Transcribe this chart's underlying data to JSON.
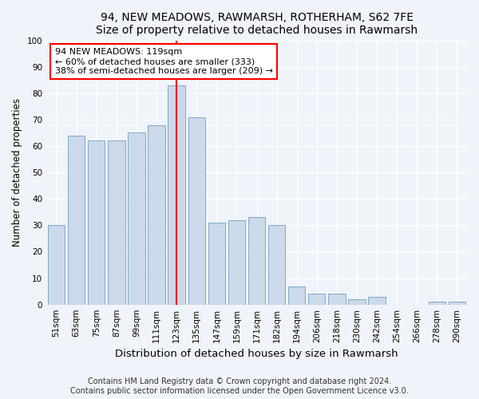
{
  "title": "94, NEW MEADOWS, RAWMARSH, ROTHERHAM, S62 7FE",
  "subtitle": "Size of property relative to detached houses in Rawmarsh",
  "xlabel": "Distribution of detached houses by size in Rawmarsh",
  "ylabel": "Number of detached properties",
  "categories": [
    "51sqm",
    "63sqm",
    "75sqm",
    "87sqm",
    "99sqm",
    "111sqm",
    "123sqm",
    "135sqm",
    "147sqm",
    "159sqm",
    "171sqm",
    "182sqm",
    "194sqm",
    "206sqm",
    "218sqm",
    "230sqm",
    "242sqm",
    "254sqm",
    "266sqm",
    "278sqm",
    "290sqm"
  ],
  "values": [
    30,
    64,
    62,
    62,
    65,
    68,
    83,
    71,
    31,
    32,
    33,
    30,
    7,
    4,
    4,
    2,
    3,
    0,
    0,
    1,
    1
  ],
  "bar_color": "#ccd9ea",
  "bar_edge_color": "#7aaac8",
  "vline_x_index": 6,
  "annotation_text": "94 NEW MEADOWS: 119sqm\n← 60% of detached houses are smaller (333)\n38% of semi-detached houses are larger (209) →",
  "annotation_box_color": "white",
  "annotation_box_edge_color": "red",
  "vline_color": "red",
  "ylim": [
    0,
    100
  ],
  "yticks": [
    0,
    10,
    20,
    30,
    40,
    50,
    60,
    70,
    80,
    90,
    100
  ],
  "title_fontsize": 10,
  "xlabel_fontsize": 9.5,
  "ylabel_fontsize": 8.5,
  "tick_fontsize": 7.5,
  "annotation_fontsize": 8,
  "footer_text": "Contains HM Land Registry data © Crown copyright and database right 2024.\nContains public sector information licensed under the Open Government Licence v3.0.",
  "footer_fontsize": 7,
  "bg_color": "#f0f4fa",
  "plot_bg_color": "#f0f4fa",
  "grid_color": "white"
}
